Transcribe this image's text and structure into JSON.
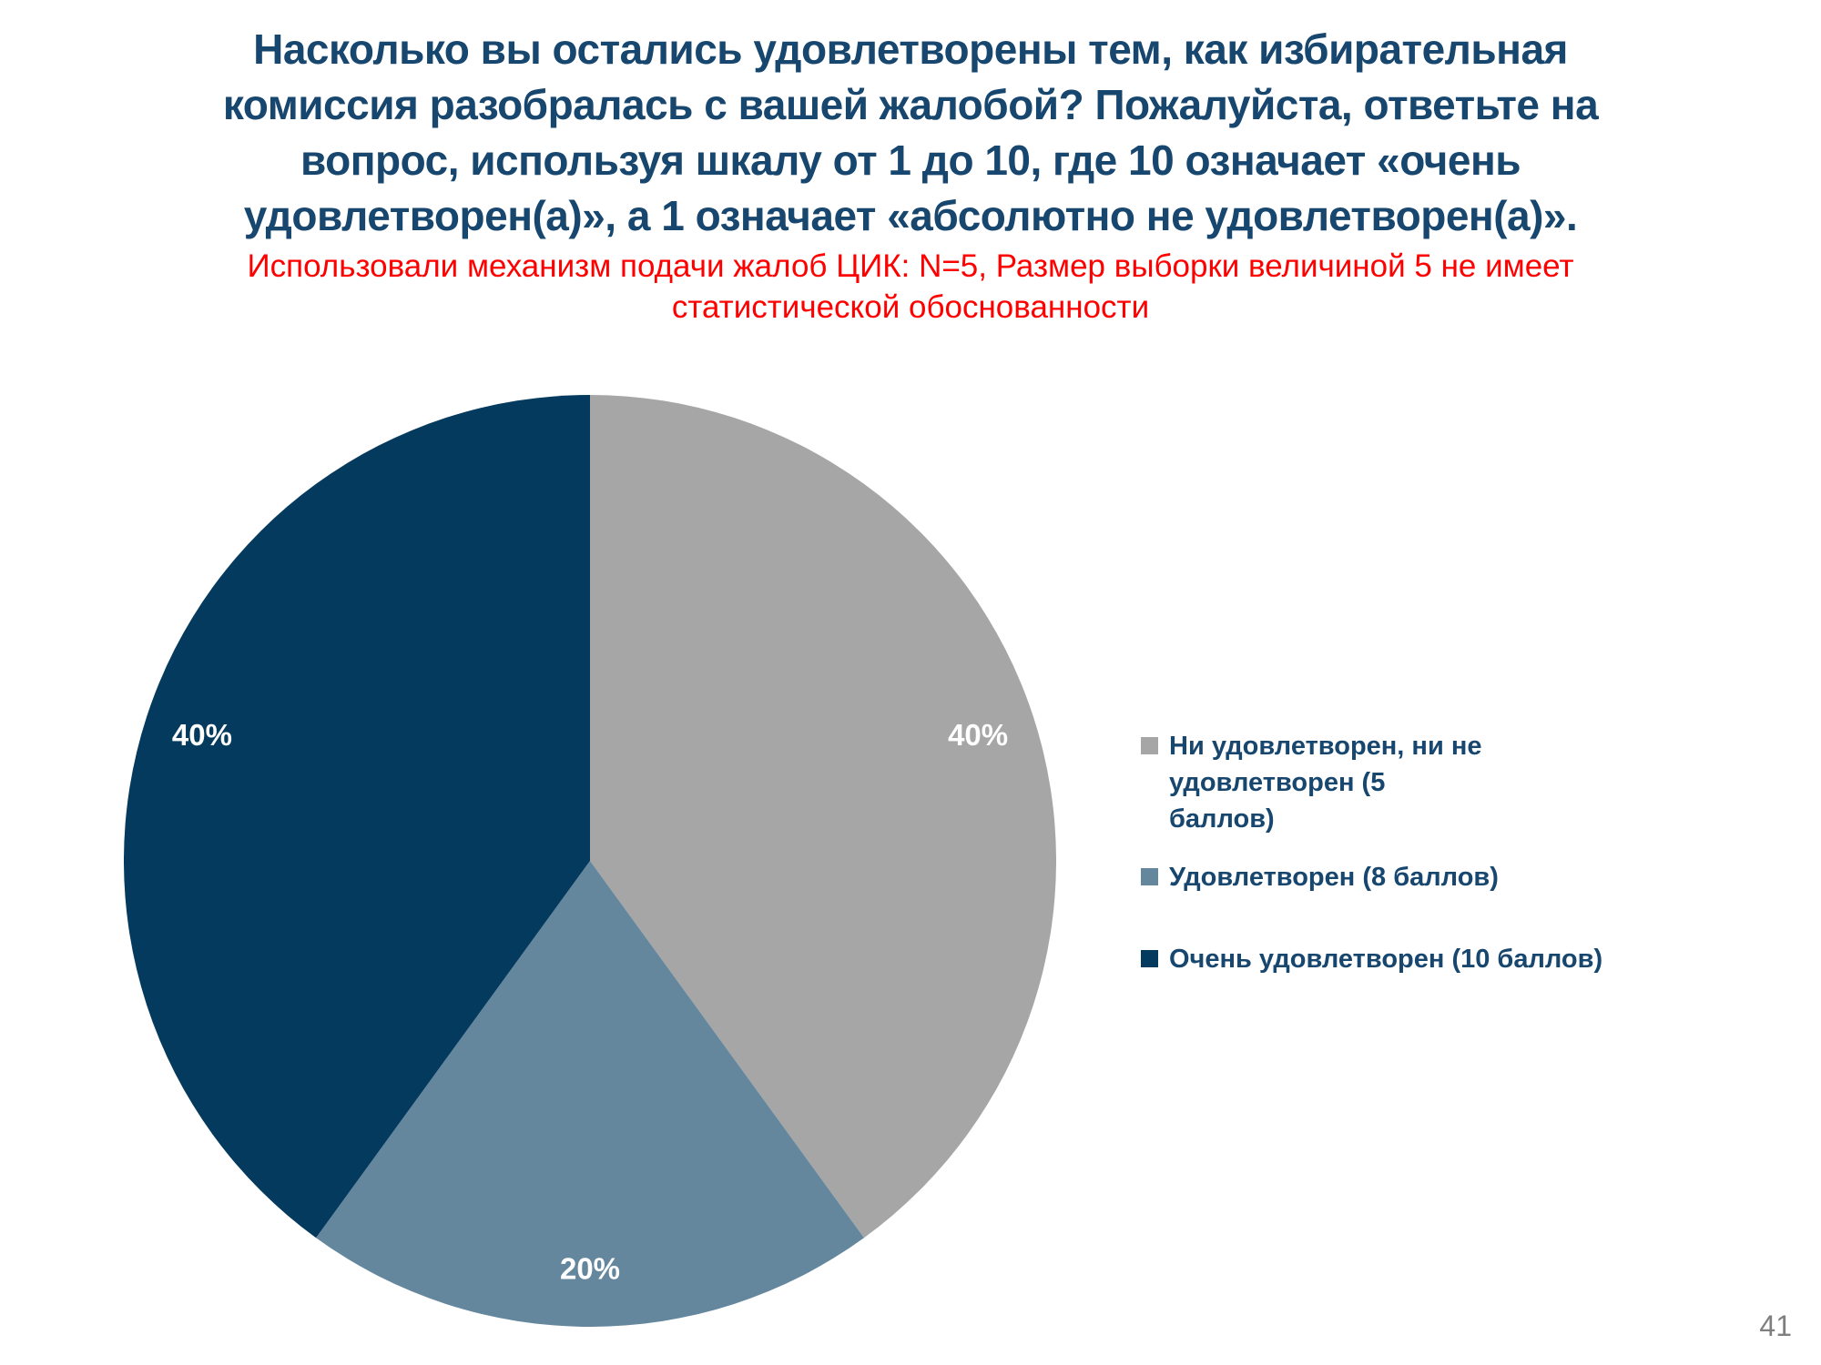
{
  "slide": {
    "title_lines": [
      "Насколько вы остались удовлетворены тем, как избирательная",
      "комиссия разобралась с вашей жалобой? Пожалуйста, ответьте на",
      "вопрос, используя шкалу от 1 до 10, где 10 означает «очень",
      "удовлетворен(а)», а 1 означает «абсолютно не удовлетворен(а)»."
    ],
    "footnote_lines": [
      "Использовали механизм подачи жалоб ЦИК: N=5, Размер выборки величиной 5 не имеет",
      "статистической обоснованности"
    ],
    "page_number": "41",
    "colors": {
      "title_text": "#17466E",
      "footnote_text": "#FF0000",
      "legend_text": "#17466E",
      "page_number_text": "#7F7F7F",
      "data_label_text": "#FFFFFF"
    }
  },
  "chart_data": {
    "type": "pie",
    "title": "",
    "start_angle_deg": 0,
    "direction": "clockwise",
    "legend_position": "right",
    "data_labels": "inside, percent, white bold",
    "slices": [
      {
        "label": "Ни удовлетворен, ни не удовлетворен (5 баллов)",
        "value": 40,
        "display": "40%",
        "color": "#A6A6A6"
      },
      {
        "label": "Удовлетворен (8 баллов)",
        "value": 20,
        "display": "20%",
        "color": "#64879E"
      },
      {
        "label": "Очень удовлетворен (10 баллов)",
        "value": 40,
        "display": "40%",
        "color": "#043A5E"
      }
    ]
  }
}
